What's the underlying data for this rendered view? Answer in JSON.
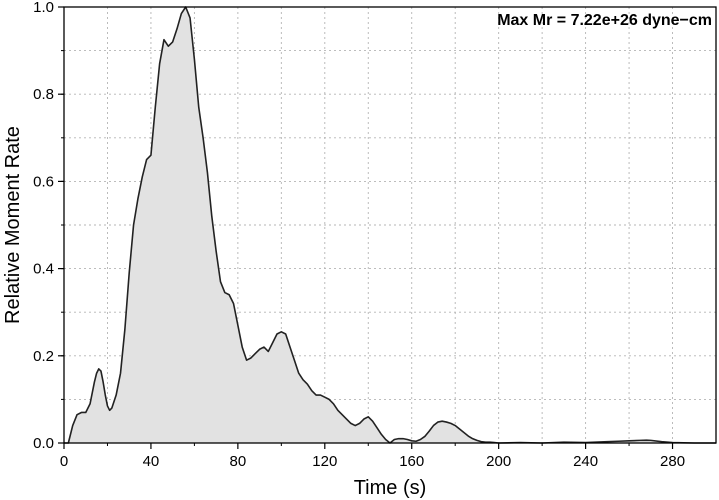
{
  "chart_data": {
    "type": "area",
    "title": "",
    "annotation": "Max Mr = 7.22e+26 dyne−cm",
    "xlabel": "Time (s)",
    "ylabel": "Relative Moment Rate",
    "xlim": [
      0,
      300
    ],
    "ylim": [
      0,
      1.0
    ],
    "xticks": [
      0,
      40,
      80,
      120,
      160,
      200,
      240,
      280
    ],
    "yticks": [
      0,
      0.2,
      0.4,
      0.6,
      0.8,
      1.0
    ],
    "xtick_labels": [
      "0",
      "40",
      "80",
      "120",
      "160",
      "200",
      "240",
      "280"
    ],
    "ytick_labels": [
      "0.0",
      "0.2",
      "0.4",
      "0.6",
      "0.8",
      "1.0"
    ],
    "x_minor_grid_step": 20,
    "y_minor_grid_step": 0.1,
    "grid": true,
    "fill_color": "#e2e2e2",
    "line_color": "#222222",
    "series": [
      {
        "x": [
          0,
          2,
          4,
          6,
          8,
          10,
          12,
          14,
          15,
          16,
          17,
          18,
          19,
          20,
          21,
          22,
          24,
          26,
          28,
          30,
          32,
          34,
          36,
          38,
          40,
          42,
          44,
          46,
          48,
          50,
          52,
          54,
          56,
          58,
          60,
          62,
          64,
          66,
          68,
          70,
          72,
          74,
          76,
          78,
          80,
          82,
          84,
          86,
          88,
          90,
          92,
          94,
          96,
          98,
          100,
          102,
          104,
          106,
          108,
          110,
          112,
          114,
          116,
          118,
          120,
          122,
          124,
          126,
          128,
          130,
          132,
          134,
          136,
          138,
          140,
          142,
          144,
          146,
          148,
          150,
          152,
          154,
          156,
          158,
          160,
          162,
          164,
          166,
          168,
          170,
          172,
          174,
          176,
          178,
          180,
          182,
          184,
          186,
          188,
          190,
          192,
          194,
          196,
          198,
          200,
          210,
          220,
          230,
          240,
          250,
          255,
          260,
          265,
          268,
          270,
          275,
          280,
          290,
          300
        ],
        "y": [
          0,
          0.0,
          0.04,
          0.065,
          0.07,
          0.07,
          0.09,
          0.14,
          0.16,
          0.17,
          0.165,
          0.14,
          0.11,
          0.085,
          0.075,
          0.08,
          0.11,
          0.16,
          0.26,
          0.39,
          0.5,
          0.56,
          0.61,
          0.65,
          0.66,
          0.77,
          0.87,
          0.925,
          0.91,
          0.92,
          0.95,
          0.985,
          1.0,
          0.975,
          0.88,
          0.77,
          0.7,
          0.62,
          0.52,
          0.44,
          0.37,
          0.345,
          0.34,
          0.32,
          0.27,
          0.22,
          0.19,
          0.195,
          0.205,
          0.215,
          0.22,
          0.21,
          0.23,
          0.25,
          0.255,
          0.25,
          0.22,
          0.19,
          0.16,
          0.145,
          0.135,
          0.12,
          0.11,
          0.11,
          0.105,
          0.1,
          0.09,
          0.075,
          0.065,
          0.055,
          0.045,
          0.04,
          0.045,
          0.055,
          0.06,
          0.05,
          0.035,
          0.02,
          0.008,
          0.0,
          0.008,
          0.01,
          0.01,
          0.008,
          0.005,
          0.004,
          0.008,
          0.015,
          0.027,
          0.04,
          0.048,
          0.05,
          0.048,
          0.045,
          0.04,
          0.032,
          0.024,
          0.016,
          0.01,
          0.006,
          0.003,
          0.002,
          0.002,
          0.001,
          0.0,
          0.001,
          0.0,
          0.002,
          0.001,
          0.003,
          0.004,
          0.005,
          0.006,
          0.0065,
          0.006,
          0.003,
          0.001,
          0.0,
          0.0
        ]
      }
    ]
  }
}
